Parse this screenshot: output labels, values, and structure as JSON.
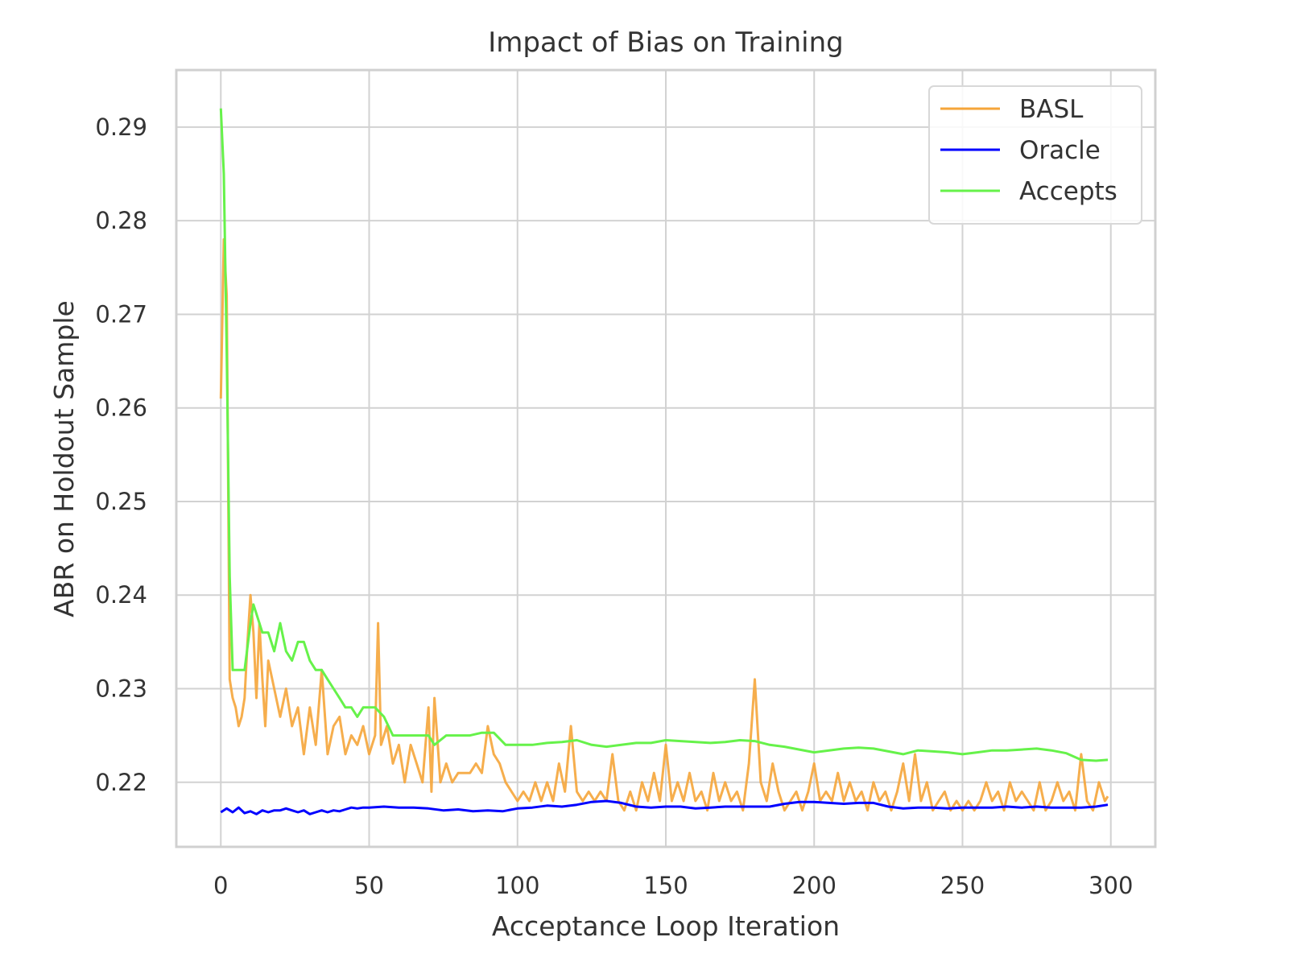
{
  "chart_data": {
    "type": "line",
    "title": "Impact of Bias on Training",
    "xlabel": "Acceptance Loop Iteration",
    "ylabel": "ABR on Holdout Sample",
    "xlim": [
      -15,
      315
    ],
    "ylim": [
      0.2131,
      0.2961
    ],
    "x_ticks": [
      0,
      50,
      100,
      150,
      200,
      250,
      300
    ],
    "y_ticks": [
      0.22,
      0.23,
      0.24,
      0.25,
      0.26,
      0.27,
      0.28,
      0.29
    ],
    "grid": true,
    "legend_position": "top-right",
    "series": [
      {
        "name": "BASL",
        "color": "#f5a53a",
        "points": [
          [
            0,
            0.261
          ],
          [
            1,
            0.278
          ],
          [
            2,
            0.272
          ],
          [
            3,
            0.231
          ],
          [
            4,
            0.229
          ],
          [
            5,
            0.228
          ],
          [
            6,
            0.226
          ],
          [
            7,
            0.227
          ],
          [
            8,
            0.229
          ],
          [
            9,
            0.235
          ],
          [
            10,
            0.24
          ],
          [
            11,
            0.236
          ],
          [
            12,
            0.229
          ],
          [
            13,
            0.237
          ],
          [
            14,
            0.231
          ],
          [
            15,
            0.226
          ],
          [
            16,
            0.233
          ],
          [
            18,
            0.23
          ],
          [
            20,
            0.227
          ],
          [
            22,
            0.23
          ],
          [
            24,
            0.226
          ],
          [
            26,
            0.228
          ],
          [
            28,
            0.223
          ],
          [
            30,
            0.228
          ],
          [
            32,
            0.224
          ],
          [
            34,
            0.232
          ],
          [
            36,
            0.223
          ],
          [
            38,
            0.226
          ],
          [
            40,
            0.227
          ],
          [
            42,
            0.223
          ],
          [
            44,
            0.225
          ],
          [
            46,
            0.224
          ],
          [
            48,
            0.226
          ],
          [
            50,
            0.223
          ],
          [
            52,
            0.225
          ],
          [
            53,
            0.237
          ],
          [
            54,
            0.224
          ],
          [
            56,
            0.226
          ],
          [
            58,
            0.222
          ],
          [
            60,
            0.224
          ],
          [
            62,
            0.22
          ],
          [
            64,
            0.224
          ],
          [
            66,
            0.222
          ],
          [
            68,
            0.22
          ],
          [
            70,
            0.228
          ],
          [
            71,
            0.219
          ],
          [
            72,
            0.229
          ],
          [
            74,
            0.22
          ],
          [
            76,
            0.222
          ],
          [
            78,
            0.22
          ],
          [
            80,
            0.221
          ],
          [
            82,
            0.221
          ],
          [
            84,
            0.221
          ],
          [
            86,
            0.222
          ],
          [
            88,
            0.221
          ],
          [
            90,
            0.226
          ],
          [
            92,
            0.223
          ],
          [
            94,
            0.222
          ],
          [
            96,
            0.22
          ],
          [
            98,
            0.219
          ],
          [
            100,
            0.218
          ],
          [
            102,
            0.219
          ],
          [
            104,
            0.218
          ],
          [
            106,
            0.22
          ],
          [
            108,
            0.218
          ],
          [
            110,
            0.22
          ],
          [
            112,
            0.218
          ],
          [
            114,
            0.222
          ],
          [
            116,
            0.219
          ],
          [
            118,
            0.226
          ],
          [
            120,
            0.219
          ],
          [
            122,
            0.218
          ],
          [
            124,
            0.219
          ],
          [
            126,
            0.218
          ],
          [
            128,
            0.219
          ],
          [
            130,
            0.218
          ],
          [
            132,
            0.223
          ],
          [
            134,
            0.218
          ],
          [
            136,
            0.217
          ],
          [
            138,
            0.219
          ],
          [
            140,
            0.217
          ],
          [
            142,
            0.22
          ],
          [
            144,
            0.218
          ],
          [
            146,
            0.221
          ],
          [
            148,
            0.218
          ],
          [
            150,
            0.224
          ],
          [
            152,
            0.218
          ],
          [
            154,
            0.22
          ],
          [
            156,
            0.218
          ],
          [
            158,
            0.221
          ],
          [
            160,
            0.218
          ],
          [
            162,
            0.219
          ],
          [
            164,
            0.217
          ],
          [
            166,
            0.221
          ],
          [
            168,
            0.218
          ],
          [
            170,
            0.22
          ],
          [
            172,
            0.218
          ],
          [
            174,
            0.219
          ],
          [
            176,
            0.217
          ],
          [
            178,
            0.222
          ],
          [
            180,
            0.231
          ],
          [
            182,
            0.22
          ],
          [
            184,
            0.218
          ],
          [
            186,
            0.222
          ],
          [
            188,
            0.219
          ],
          [
            190,
            0.217
          ],
          [
            192,
            0.218
          ],
          [
            194,
            0.219
          ],
          [
            196,
            0.217
          ],
          [
            198,
            0.219
          ],
          [
            200,
            0.222
          ],
          [
            202,
            0.218
          ],
          [
            204,
            0.219
          ],
          [
            206,
            0.218
          ],
          [
            208,
            0.221
          ],
          [
            210,
            0.218
          ],
          [
            212,
            0.22
          ],
          [
            214,
            0.218
          ],
          [
            216,
            0.219
          ],
          [
            218,
            0.217
          ],
          [
            220,
            0.22
          ],
          [
            222,
            0.218
          ],
          [
            224,
            0.219
          ],
          [
            226,
            0.217
          ],
          [
            228,
            0.219
          ],
          [
            230,
            0.222
          ],
          [
            232,
            0.218
          ],
          [
            234,
            0.223
          ],
          [
            236,
            0.218
          ],
          [
            238,
            0.22
          ],
          [
            240,
            0.217
          ],
          [
            242,
            0.218
          ],
          [
            244,
            0.219
          ],
          [
            246,
            0.217
          ],
          [
            248,
            0.218
          ],
          [
            250,
            0.217
          ],
          [
            252,
            0.218
          ],
          [
            254,
            0.217
          ],
          [
            256,
            0.218
          ],
          [
            258,
            0.22
          ],
          [
            260,
            0.218
          ],
          [
            262,
            0.219
          ],
          [
            264,
            0.217
          ],
          [
            266,
            0.22
          ],
          [
            268,
            0.218
          ],
          [
            270,
            0.219
          ],
          [
            272,
            0.218
          ],
          [
            274,
            0.217
          ],
          [
            276,
            0.22
          ],
          [
            278,
            0.217
          ],
          [
            280,
            0.218
          ],
          [
            282,
            0.22
          ],
          [
            284,
            0.218
          ],
          [
            286,
            0.219
          ],
          [
            288,
            0.217
          ],
          [
            290,
            0.223
          ],
          [
            292,
            0.218
          ],
          [
            294,
            0.217
          ],
          [
            296,
            0.22
          ],
          [
            298,
            0.218
          ],
          [
            299,
            0.2185
          ]
        ]
      },
      {
        "name": "Oracle",
        "color": "#0000ff",
        "points": [
          [
            0,
            0.2168
          ],
          [
            2,
            0.2172
          ],
          [
            4,
            0.2168
          ],
          [
            6,
            0.2173
          ],
          [
            8,
            0.2167
          ],
          [
            10,
            0.2169
          ],
          [
            12,
            0.2166
          ],
          [
            14,
            0.217
          ],
          [
            16,
            0.2168
          ],
          [
            18,
            0.217
          ],
          [
            20,
            0.217
          ],
          [
            22,
            0.2172
          ],
          [
            24,
            0.217
          ],
          [
            26,
            0.2168
          ],
          [
            28,
            0.217
          ],
          [
            30,
            0.2166
          ],
          [
            32,
            0.2168
          ],
          [
            34,
            0.217
          ],
          [
            36,
            0.2168
          ],
          [
            38,
            0.217
          ],
          [
            40,
            0.2169
          ],
          [
            42,
            0.2171
          ],
          [
            44,
            0.2173
          ],
          [
            46,
            0.2172
          ],
          [
            48,
            0.2173
          ],
          [
            50,
            0.2173
          ],
          [
            55,
            0.2174
          ],
          [
            60,
            0.2173
          ],
          [
            65,
            0.2173
          ],
          [
            70,
            0.2172
          ],
          [
            75,
            0.217
          ],
          [
            80,
            0.2171
          ],
          [
            85,
            0.2169
          ],
          [
            90,
            0.217
          ],
          [
            95,
            0.2169
          ],
          [
            100,
            0.2172
          ],
          [
            105,
            0.2173
          ],
          [
            110,
            0.2175
          ],
          [
            115,
            0.2174
          ],
          [
            120,
            0.2176
          ],
          [
            125,
            0.2179
          ],
          [
            130,
            0.218
          ],
          [
            135,
            0.2178
          ],
          [
            140,
            0.2174
          ],
          [
            145,
            0.2173
          ],
          [
            150,
            0.2174
          ],
          [
            155,
            0.2174
          ],
          [
            160,
            0.2172
          ],
          [
            165,
            0.2173
          ],
          [
            170,
            0.2174
          ],
          [
            175,
            0.2174
          ],
          [
            180,
            0.2174
          ],
          [
            185,
            0.2174
          ],
          [
            190,
            0.2177
          ],
          [
            195,
            0.2179
          ],
          [
            200,
            0.2179
          ],
          [
            205,
            0.2178
          ],
          [
            210,
            0.2177
          ],
          [
            215,
            0.2178
          ],
          [
            220,
            0.2178
          ],
          [
            225,
            0.2174
          ],
          [
            230,
            0.2172
          ],
          [
            235,
            0.2173
          ],
          [
            240,
            0.2173
          ],
          [
            245,
            0.2172
          ],
          [
            250,
            0.2173
          ],
          [
            255,
            0.2173
          ],
          [
            260,
            0.2173
          ],
          [
            265,
            0.2174
          ],
          [
            270,
            0.2173
          ],
          [
            275,
            0.2174
          ],
          [
            280,
            0.2173
          ],
          [
            285,
            0.2173
          ],
          [
            290,
            0.2173
          ],
          [
            295,
            0.2174
          ],
          [
            299,
            0.2176
          ]
        ]
      },
      {
        "name": "Accepts",
        "color": "#66f24a",
        "points": [
          [
            0,
            0.292
          ],
          [
            1,
            0.285
          ],
          [
            2,
            0.266
          ],
          [
            3,
            0.242
          ],
          [
            4,
            0.232
          ],
          [
            6,
            0.232
          ],
          [
            8,
            0.232
          ],
          [
            10,
            0.237
          ],
          [
            11,
            0.239
          ],
          [
            12,
            0.238
          ],
          [
            14,
            0.236
          ],
          [
            16,
            0.236
          ],
          [
            18,
            0.234
          ],
          [
            20,
            0.237
          ],
          [
            22,
            0.234
          ],
          [
            24,
            0.233
          ],
          [
            26,
            0.235
          ],
          [
            28,
            0.235
          ],
          [
            30,
            0.233
          ],
          [
            32,
            0.232
          ],
          [
            34,
            0.232
          ],
          [
            36,
            0.231
          ],
          [
            38,
            0.23
          ],
          [
            40,
            0.229
          ],
          [
            42,
            0.228
          ],
          [
            44,
            0.228
          ],
          [
            46,
            0.227
          ],
          [
            48,
            0.228
          ],
          [
            50,
            0.228
          ],
          [
            52,
            0.228
          ],
          [
            55,
            0.227
          ],
          [
            58,
            0.225
          ],
          [
            62,
            0.225
          ],
          [
            66,
            0.225
          ],
          [
            70,
            0.225
          ],
          [
            72,
            0.224
          ],
          [
            76,
            0.225
          ],
          [
            80,
            0.225
          ],
          [
            84,
            0.225
          ],
          [
            88,
            0.2253
          ],
          [
            92,
            0.2253
          ],
          [
            96,
            0.224
          ],
          [
            100,
            0.224
          ],
          [
            105,
            0.224
          ],
          [
            110,
            0.2242
          ],
          [
            115,
            0.2243
          ],
          [
            120,
            0.2245
          ],
          [
            125,
            0.224
          ],
          [
            130,
            0.2238
          ],
          [
            135,
            0.224
          ],
          [
            140,
            0.2242
          ],
          [
            145,
            0.2242
          ],
          [
            150,
            0.2245
          ],
          [
            155,
            0.2244
          ],
          [
            160,
            0.2243
          ],
          [
            165,
            0.2242
          ],
          [
            170,
            0.2243
          ],
          [
            175,
            0.2245
          ],
          [
            180,
            0.2244
          ],
          [
            185,
            0.224
          ],
          [
            190,
            0.2238
          ],
          [
            195,
            0.2235
          ],
          [
            200,
            0.2232
          ],
          [
            205,
            0.2234
          ],
          [
            210,
            0.2236
          ],
          [
            215,
            0.2237
          ],
          [
            220,
            0.2236
          ],
          [
            225,
            0.2233
          ],
          [
            230,
            0.223
          ],
          [
            235,
            0.2234
          ],
          [
            240,
            0.2233
          ],
          [
            245,
            0.2232
          ],
          [
            250,
            0.223
          ],
          [
            255,
            0.2232
          ],
          [
            260,
            0.2234
          ],
          [
            265,
            0.2234
          ],
          [
            270,
            0.2235
          ],
          [
            275,
            0.2236
          ],
          [
            280,
            0.2234
          ],
          [
            285,
            0.2231
          ],
          [
            290,
            0.2224
          ],
          [
            295,
            0.2223
          ],
          [
            299,
            0.2224
          ]
        ]
      }
    ]
  }
}
